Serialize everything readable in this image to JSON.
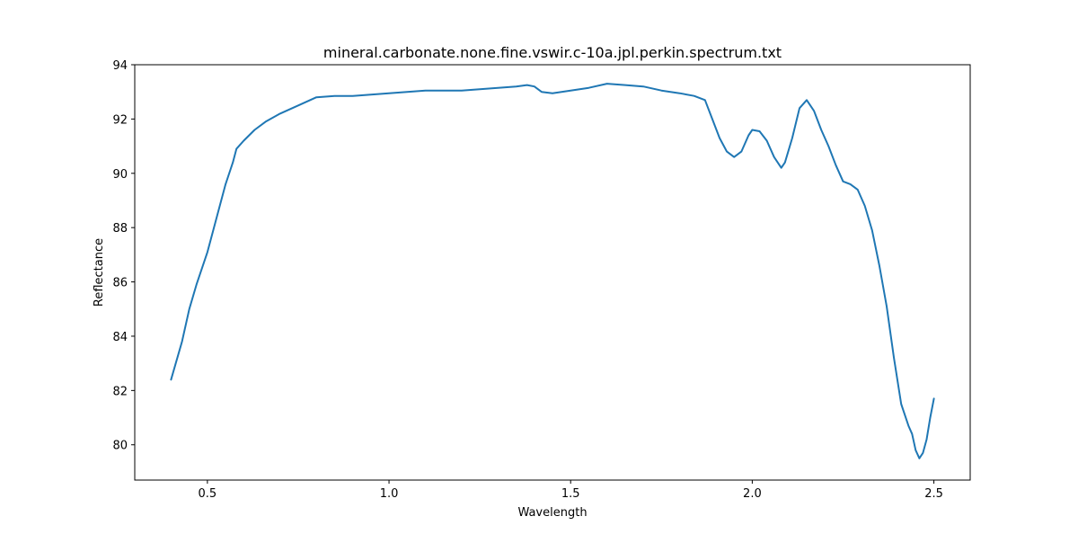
{
  "chart_data": {
    "type": "line",
    "title": "mineral.carbonate.none.fine.vswir.c-10a.jpl.perkin.spectrum.txt",
    "xlabel": "Wavelength",
    "ylabel": "Reflectance",
    "xlim": [
      0.3,
      2.6
    ],
    "ylim": [
      78.7,
      94.0
    ],
    "xticks": [
      0.5,
      1.0,
      1.5,
      2.0,
      2.5
    ],
    "xtick_labels": [
      "0.5",
      "1.0",
      "1.5",
      "2.0",
      "2.5"
    ],
    "yticks": [
      80,
      82,
      84,
      86,
      88,
      90,
      92,
      94
    ],
    "ytick_labels": [
      "80",
      "82",
      "84",
      "86",
      "88",
      "90",
      "92",
      "94"
    ],
    "grid": false,
    "legend": "none",
    "series": [
      {
        "color": "#1f77b4",
        "x": [
          0.4,
          0.43,
          0.45,
          0.47,
          0.5,
          0.53,
          0.55,
          0.57,
          0.58,
          0.6,
          0.63,
          0.66,
          0.7,
          0.75,
          0.8,
          0.85,
          0.9,
          1.0,
          1.1,
          1.2,
          1.3,
          1.35,
          1.38,
          1.4,
          1.42,
          1.45,
          1.5,
          1.55,
          1.6,
          1.65,
          1.7,
          1.75,
          1.8,
          1.84,
          1.87,
          1.89,
          1.91,
          1.93,
          1.95,
          1.97,
          1.99,
          2.0,
          2.02,
          2.04,
          2.06,
          2.08,
          2.09,
          2.11,
          2.13,
          2.15,
          2.17,
          2.19,
          2.21,
          2.23,
          2.25,
          2.27,
          2.29,
          2.31,
          2.33,
          2.35,
          2.37,
          2.39,
          2.41,
          2.43,
          2.44,
          2.45,
          2.46,
          2.47,
          2.48,
          2.49,
          2.5
        ],
        "y": [
          82.4,
          83.8,
          85.0,
          85.9,
          87.1,
          88.6,
          89.6,
          90.4,
          90.9,
          91.2,
          91.6,
          91.9,
          92.2,
          92.5,
          92.8,
          92.85,
          92.85,
          92.95,
          93.05,
          93.05,
          93.15,
          93.2,
          93.25,
          93.2,
          93.0,
          92.95,
          93.05,
          93.15,
          93.3,
          93.25,
          93.2,
          93.05,
          92.95,
          92.85,
          92.7,
          92.0,
          91.3,
          90.8,
          90.6,
          90.8,
          91.4,
          91.6,
          91.55,
          91.2,
          90.6,
          90.2,
          90.4,
          91.3,
          92.4,
          92.7,
          92.3,
          91.6,
          91.0,
          90.3,
          89.7,
          89.6,
          89.4,
          88.8,
          87.9,
          86.6,
          85.1,
          83.2,
          81.5,
          80.7,
          80.4,
          79.8,
          79.5,
          79.7,
          80.2,
          81.0,
          81.7
        ]
      }
    ]
  }
}
